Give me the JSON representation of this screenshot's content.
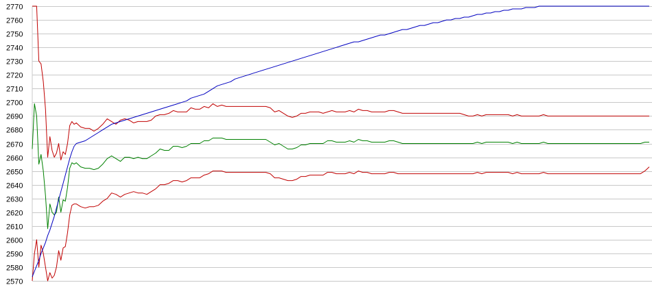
{
  "chart_data": {
    "type": "line",
    "title": "",
    "xlabel": "",
    "ylabel": "",
    "ylim": [
      2570,
      2770
    ],
    "yticks": [
      2570,
      2580,
      2590,
      2600,
      2610,
      2620,
      2630,
      2640,
      2650,
      2660,
      2670,
      2680,
      2690,
      2700,
      2710,
      2720,
      2730,
      2740,
      2750,
      2760,
      2770
    ],
    "grid": true,
    "legend": "none",
    "x": [
      0,
      1,
      2,
      3,
      4,
      5,
      6,
      7,
      8,
      9,
      10,
      11,
      12,
      13,
      14,
      15,
      16,
      17,
      18,
      19,
      20,
      22,
      24,
      26,
      28,
      30,
      32,
      34,
      36,
      38,
      40,
      42,
      44,
      46,
      48,
      50,
      52,
      54,
      56,
      58,
      60,
      62,
      64,
      66,
      68,
      70,
      72,
      74,
      76,
      78,
      80,
      82,
      84,
      86,
      88,
      90,
      92,
      94,
      96,
      98,
      100,
      102,
      104,
      106,
      108,
      110,
      112,
      114,
      116,
      118,
      120,
      122,
      124,
      126,
      128,
      130,
      132,
      134,
      136,
      138,
      140,
      142,
      144,
      146,
      148,
      150,
      152,
      154,
      156,
      158,
      160,
      162,
      164,
      166,
      168,
      170,
      172,
      174,
      176,
      178,
      180,
      182,
      184,
      186,
      188,
      190,
      192,
      194,
      196,
      198,
      200,
      202,
      204,
      206,
      208,
      210,
      212,
      214,
      216,
      218,
      220,
      222,
      224,
      226,
      228,
      230,
      232,
      234,
      236,
      238,
      240,
      242,
      244,
      246,
      248,
      250,
      252,
      254,
      256,
      258,
      260,
      262,
      264,
      266,
      268,
      270,
      272,
      274,
      276,
      278,
      280
    ],
    "series": [
      {
        "color": "#c00000",
        "values": [
          2770,
          2770,
          2770,
          2730,
          2728,
          2715,
          2695,
          2660,
          2675,
          2665,
          2660,
          2663,
          2670,
          2658,
          2664,
          2662,
          2670,
          2683,
          2686,
          2684,
          2685,
          2682,
          2681,
          2681,
          2679,
          2681,
          2684,
          2688,
          2686,
          2684,
          2687,
          2688,
          2687,
          2685,
          2686,
          2686,
          2686,
          2687,
          2690,
          2691,
          2691,
          2692,
          2694,
          2693,
          2693,
          2693,
          2696,
          2695,
          2695,
          2697,
          2696,
          2699,
          2697,
          2698,
          2697,
          2697,
          2697,
          2697,
          2697,
          2697,
          2697,
          2697,
          2697,
          2697,
          2696,
          2693,
          2694,
          2692,
          2690,
          2689,
          2690,
          2692,
          2692,
          2693,
          2693,
          2693,
          2692,
          2693,
          2694,
          2693,
          2693,
          2693,
          2694,
          2693,
          2695,
          2694,
          2694,
          2693,
          2693,
          2693,
          2693,
          2694,
          2694,
          2693,
          2692,
          2692,
          2692,
          2692,
          2692,
          2692,
          2692,
          2692,
          2692,
          2692,
          2692,
          2692,
          2692,
          2692,
          2691,
          2690,
          2690,
          2691,
          2690,
          2691,
          2691,
          2691,
          2691,
          2691,
          2691,
          2690,
          2691,
          2690,
          2690,
          2690,
          2690,
          2690,
          2691,
          2690,
          2690,
          2690,
          2690,
          2690,
          2690,
          2690,
          2690,
          2690,
          2690,
          2690,
          2690,
          2690,
          2690,
          2690,
          2690,
          2690,
          2690,
          2690,
          2690,
          2690,
          2690,
          2690,
          2690
        ],
        "note_series": "upper"
      },
      {
        "color": "#008000",
        "values": [
          2666,
          2699,
          2690,
          2655,
          2662,
          2650,
          2632,
          2608,
          2626,
          2620,
          2618,
          2620,
          2631,
          2620,
          2629,
          2628,
          2638,
          2652,
          2656,
          2655,
          2656,
          2653,
          2652,
          2652,
          2651,
          2652,
          2655,
          2659,
          2661,
          2659,
          2657,
          2660,
          2660,
          2659,
          2660,
          2659,
          2659,
          2661,
          2663,
          2666,
          2665,
          2665,
          2668,
          2668,
          2667,
          2668,
          2670,
          2670,
          2670,
          2672,
          2672,
          2674,
          2674,
          2674,
          2673,
          2673,
          2673,
          2673,
          2673,
          2673,
          2673,
          2673,
          2673,
          2673,
          2671,
          2669,
          2670,
          2668,
          2666,
          2666,
          2667,
          2669,
          2669,
          2670,
          2670,
          2670,
          2670,
          2672,
          2672,
          2671,
          2671,
          2671,
          2672,
          2671,
          2673,
          2672,
          2672,
          2671,
          2671,
          2671,
          2671,
          2672,
          2672,
          2671,
          2670,
          2670,
          2670,
          2670,
          2670,
          2670,
          2670,
          2670,
          2670,
          2670,
          2670,
          2670,
          2670,
          2670,
          2670,
          2670,
          2670,
          2671,
          2670,
          2671,
          2671,
          2671,
          2671,
          2671,
          2671,
          2670,
          2671,
          2670,
          2670,
          2670,
          2670,
          2670,
          2671,
          2670,
          2670,
          2670,
          2670,
          2670,
          2670,
          2670,
          2670,
          2670,
          2670,
          2670,
          2670,
          2670,
          2670,
          2670,
          2670,
          2670,
          2670,
          2670,
          2670,
          2670,
          2670,
          2671,
          2671
        ],
        "note_series": "middle"
      },
      {
        "color": "#c00000",
        "values": [
          2570,
          2590,
          2600,
          2580,
          2596,
          2590,
          2580,
          2570,
          2576,
          2572,
          2574,
          2580,
          2592,
          2585,
          2594,
          2595,
          2605,
          2618,
          2625,
          2626,
          2626,
          2624,
          2623,
          2624,
          2624,
          2625,
          2628,
          2630,
          2634,
          2633,
          2631,
          2633,
          2634,
          2635,
          2634,
          2634,
          2633,
          2635,
          2637,
          2640,
          2640,
          2641,
          2643,
          2643,
          2642,
          2643,
          2645,
          2645,
          2645,
          2647,
          2648,
          2650,
          2650,
          2650,
          2649,
          2649,
          2649,
          2649,
          2649,
          2649,
          2649,
          2649,
          2649,
          2649,
          2648,
          2645,
          2645,
          2644,
          2643,
          2643,
          2644,
          2646,
          2646,
          2647,
          2647,
          2647,
          2647,
          2649,
          2649,
          2648,
          2648,
          2648,
          2649,
          2648,
          2650,
          2649,
          2649,
          2648,
          2648,
          2648,
          2648,
          2649,
          2649,
          2648,
          2648,
          2648,
          2648,
          2648,
          2648,
          2648,
          2648,
          2648,
          2648,
          2648,
          2648,
          2648,
          2648,
          2648,
          2648,
          2648,
          2648,
          2649,
          2648,
          2649,
          2649,
          2649,
          2649,
          2649,
          2649,
          2648,
          2649,
          2648,
          2648,
          2648,
          2648,
          2648,
          2649,
          2648,
          2648,
          2648,
          2648,
          2648,
          2648,
          2648,
          2648,
          2648,
          2648,
          2648,
          2648,
          2648,
          2648,
          2648,
          2648,
          2648,
          2648,
          2648,
          2648,
          2648,
          2648,
          2650,
          2653
        ],
        "note_series": "lower"
      },
      {
        "color": "#0000c0",
        "values": [
          2573,
          2577,
          2581,
          2585,
          2590,
          2594,
          2598,
          2603,
          2607,
          2612,
          2617,
          2623,
          2629,
          2635,
          2641,
          2647,
          2653,
          2659,
          2664,
          2668,
          2670,
          2671,
          2672,
          2674,
          2676,
          2678,
          2680,
          2682,
          2684,
          2685,
          2686,
          2687,
          2688,
          2689,
          2690,
          2691,
          2692,
          2693,
          2694,
          2695,
          2696,
          2697,
          2698,
          2699,
          2700,
          2701,
          2703,
          2704,
          2705,
          2706,
          2708,
          2710,
          2712,
          2713,
          2714,
          2715,
          2717,
          2718,
          2719,
          2720,
          2721,
          2722,
          2723,
          2724,
          2725,
          2726,
          2727,
          2728,
          2729,
          2730,
          2731,
          2732,
          2733,
          2734,
          2735,
          2736,
          2737,
          2738,
          2739,
          2740,
          2741,
          2742,
          2743,
          2744,
          2744,
          2745,
          2746,
          2747,
          2748,
          2749,
          2749,
          2750,
          2751,
          2752,
          2753,
          2753,
          2754,
          2755,
          2756,
          2756,
          2757,
          2758,
          2758,
          2759,
          2760,
          2760,
          2761,
          2761,
          2762,
          2762,
          2763,
          2764,
          2764,
          2765,
          2765,
          2766,
          2766,
          2767,
          2767,
          2768,
          2768,
          2768,
          2769,
          2769,
          2769,
          2770,
          2770,
          2770,
          2770,
          2770,
          2770,
          2770,
          2770,
          2770,
          2770,
          2770,
          2770,
          2770,
          2770,
          2770,
          2770,
          2770,
          2770,
          2770,
          2770,
          2770,
          2770,
          2770,
          2770,
          2770,
          2770
        ],
        "note_series": "trend"
      }
    ]
  }
}
